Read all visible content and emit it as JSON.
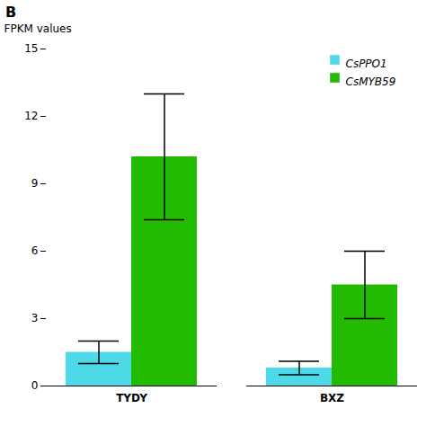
{
  "chart_data": {
    "type": "bar",
    "categories": [
      "TYDY",
      "BXZ"
    ],
    "series": [
      {
        "name": "CsPPO1",
        "color": "#4DD9E8",
        "values": [
          1.5,
          0.8
        ],
        "errors": [
          0.5,
          0.3
        ]
      },
      {
        "name": "CsMYB59",
        "color": "#22BB00",
        "values": [
          10.2,
          4.5
        ],
        "errors": [
          2.8,
          1.5
        ]
      }
    ],
    "ylabel": "FPKM values",
    "ylim": [
      0,
      15
    ],
    "yticks": [
      0,
      3,
      6,
      9,
      12,
      15
    ],
    "grid": false,
    "legend": "upper right",
    "annotations": [
      "B"
    ]
  }
}
